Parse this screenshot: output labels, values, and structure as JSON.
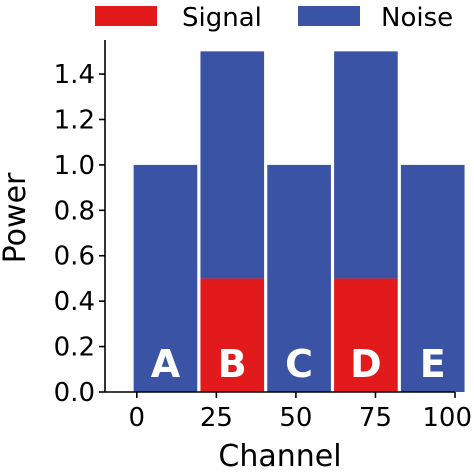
{
  "chart_data": {
    "type": "bar",
    "stacked": true,
    "xlabel": "Channel",
    "ylabel": "Power",
    "xlim": [
      -10,
      100
    ],
    "ylim": [
      0,
      1.55
    ],
    "x_ticks": [
      0,
      25,
      50,
      75,
      100
    ],
    "y_ticks": [
      0.0,
      0.2,
      0.4,
      0.6,
      0.8,
      1.0,
      1.2,
      1.4
    ],
    "x_tick_labels": [
      "0",
      "25",
      "50",
      "75",
      "100"
    ],
    "y_tick_labels": [
      "0.0",
      "0.2",
      "0.4",
      "0.6",
      "0.8",
      "1.0",
      "1.2",
      "1.4"
    ],
    "bar_width": 20,
    "legend": {
      "placement": "top",
      "entries": [
        "Signal",
        "Noise"
      ]
    },
    "series": [
      {
        "name": "Signal",
        "color": "#e31a1c",
        "values": [
          0,
          0.5,
          0,
          0.5,
          0
        ]
      },
      {
        "name": "Noise",
        "color": "#3a53a4",
        "values": [
          1.0,
          1.0,
          1.0,
          1.0,
          1.0
        ]
      }
    ],
    "bars": [
      {
        "label": "A",
        "x_start": -1,
        "x_end": 19,
        "signal": 0,
        "noise": 1.0
      },
      {
        "label": "B",
        "x_start": 20,
        "x_end": 40,
        "signal": 0.5,
        "noise": 1.0
      },
      {
        "label": "C",
        "x_start": 41,
        "x_end": 61,
        "signal": 0,
        "noise": 1.0
      },
      {
        "label": "D",
        "x_start": 62,
        "x_end": 82,
        "signal": 0.5,
        "noise": 1.0
      },
      {
        "label": "E",
        "x_start": 83,
        "x_end": 103,
        "signal": 0,
        "noise": 1.0
      }
    ],
    "grid": false
  }
}
